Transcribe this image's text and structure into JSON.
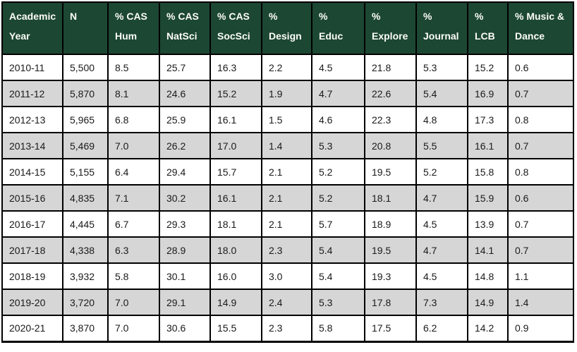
{
  "colors": {
    "header_background": "#1c4733",
    "header_text": "#fdfdf8",
    "stripe_background": "#d6d6d6",
    "row_background": "#ffffff",
    "border": "#000000",
    "body_text": "#1a1a1a"
  },
  "table_header": {
    "lines": [
      [
        "Academic",
        "Year"
      ],
      [
        "N"
      ],
      [
        "% CAS",
        "Hum"
      ],
      [
        "% CAS",
        "NatSci"
      ],
      [
        "% CAS",
        "SocSci"
      ],
      [
        "%",
        "Design"
      ],
      [
        "%",
        "Educ"
      ],
      [
        "%",
        "Explore"
      ],
      [
        "%",
        "Journal"
      ],
      [
        "%",
        "LCB"
      ],
      [
        "% Music &",
        "Dance"
      ]
    ]
  },
  "chart_data": {
    "type": "table",
    "columns": [
      "Academic Year",
      "N",
      "% CAS Hum",
      "% CAS NatSci",
      "% CAS SocSci",
      "% Design",
      "% Educ",
      "% Explore",
      "% Journal",
      "% LCB",
      "% Music & Dance"
    ],
    "rows": [
      [
        "2010-11",
        "5,500",
        "8.5",
        "25.7",
        "16.3",
        "2.2",
        "4.5",
        "21.8",
        "5.3",
        "15.2",
        "0.6"
      ],
      [
        "2011-12",
        "5,870",
        "8.1",
        "24.6",
        "15.2",
        "1.9",
        "4.7",
        "22.6",
        "5.4",
        "16.9",
        "0.7"
      ],
      [
        "2012-13",
        "5,965",
        "6.8",
        "25.9",
        "16.1",
        "1.5",
        "4.6",
        "22.3",
        "4.8",
        "17.3",
        "0.8"
      ],
      [
        "2013-14",
        "5,469",
        "7.0",
        "26.2",
        "17.0",
        "1.4",
        "5.3",
        "20.8",
        "5.5",
        "16.1",
        "0.7"
      ],
      [
        "2014-15",
        "5,155",
        "6.4",
        "29.4",
        "15.7",
        "2.1",
        "5.2",
        "19.5",
        "5.2",
        "15.8",
        "0.8"
      ],
      [
        "2015-16",
        "4,835",
        "7.1",
        "30.2",
        "16.1",
        "2.1",
        "5.2",
        "18.1",
        "4.7",
        "15.9",
        "0.6"
      ],
      [
        "2016-17",
        "4,445",
        "6.7",
        "29.3",
        "18.1",
        "2.1",
        "5.7",
        "18.9",
        "4.5",
        "13.9",
        "0.7"
      ],
      [
        "2017-18",
        "4,338",
        "6.3",
        "28.9",
        "18.0",
        "2.3",
        "5.4",
        "19.5",
        "4.7",
        "14.1",
        "0.7"
      ],
      [
        "2018-19",
        "3,932",
        "5.8",
        "30.1",
        "16.0",
        "3.0",
        "5.4",
        "19.3",
        "4.5",
        "14.8",
        "1.1"
      ],
      [
        "2019-20",
        "3,720",
        "7.0",
        "29.1",
        "14.9",
        "2.4",
        "5.3",
        "17.8",
        "7.3",
        "14.9",
        "1.4"
      ],
      [
        "2020-21",
        "3,870",
        "7.0",
        "30.6",
        "15.5",
        "2.3",
        "5.8",
        "17.5",
        "6.2",
        "14.2",
        "0.9"
      ]
    ]
  }
}
